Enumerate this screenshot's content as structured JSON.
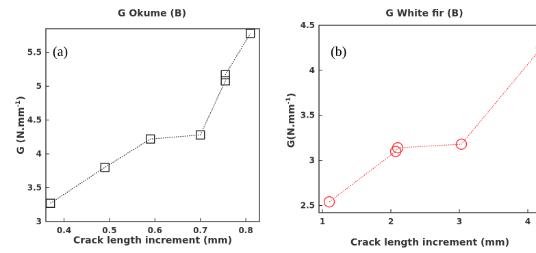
{
  "chart_data": [
    {
      "type": "line",
      "title": "G Okume (B)",
      "panel_label": "(a)",
      "xlabel": "Crack length increment (mm)",
      "ylabel": "G (N.mm-1)",
      "xlim": [
        0.36,
        0.83
      ],
      "ylim": [
        3.0,
        5.85
      ],
      "xticks": [
        0.4,
        0.5,
        0.6,
        0.7,
        0.8
      ],
      "yticks": [
        3,
        3.5,
        4,
        4.5,
        5,
        5.5
      ],
      "xtick_labels": [
        "0.4",
        "0.5",
        "0.6",
        "0.7",
        "0.8"
      ],
      "ytick_labels": [
        "3",
        "3.5",
        "4",
        "4.5",
        "5",
        "5.5"
      ],
      "marker": "square",
      "color": "#222222",
      "x": [
        0.37,
        0.49,
        0.59,
        0.7,
        0.755,
        0.755,
        0.81
      ],
      "y": [
        3.27,
        3.8,
        4.22,
        4.28,
        5.08,
        5.17,
        5.78
      ]
    },
    {
      "type": "line",
      "title": "G White fir (B)",
      "panel_label": "(b)",
      "xlabel": "Crack length increment (mm)",
      "ylabel": "G(N.mm-1)",
      "xlim": [
        0.95,
        4.25
      ],
      "ylim": [
        2.42,
        4.5
      ],
      "xticks": [
        1,
        2,
        3,
        4
      ],
      "yticks": [
        2.5,
        3,
        3.5,
        4,
        4.5
      ],
      "xtick_labels": [
        "1",
        "2",
        "3",
        "4"
      ],
      "ytick_labels": [
        "2.5",
        "3",
        "3.5",
        "4",
        "4.5"
      ],
      "marker": "circle",
      "color": "#ff3333",
      "x": [
        1.1,
        2.07,
        2.1,
        3.03,
        4.2
      ],
      "y": [
        2.54,
        3.1,
        3.14,
        3.18,
        4.25
      ]
    }
  ]
}
